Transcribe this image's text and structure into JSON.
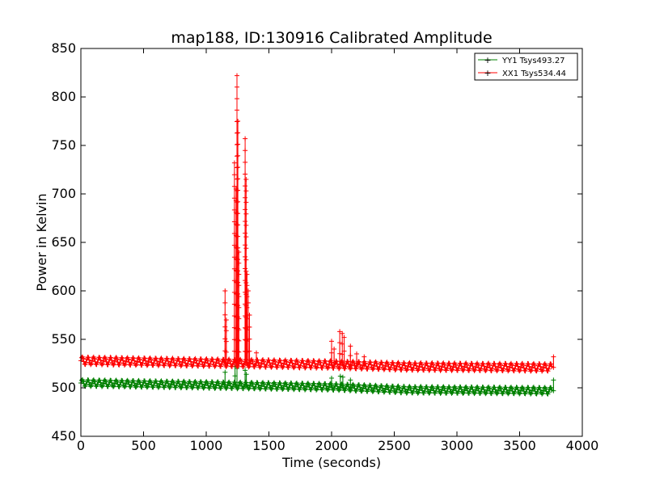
{
  "chart_data": {
    "type": "line",
    "title": "map188, ID:130916 Calibrated Amplitude",
    "xlabel": "Time (seconds)",
    "ylabel": "Power in Kelvin",
    "xlim": [
      0,
      4000
    ],
    "ylim": [
      450,
      850
    ],
    "xticks": [
      0,
      500,
      1000,
      1500,
      2000,
      2500,
      3000,
      3500,
      4000
    ],
    "yticks": [
      450,
      500,
      550,
      600,
      650,
      700,
      750,
      800,
      850
    ],
    "grid": false,
    "legend_position": "top-right",
    "series": [
      {
        "name": "YY1 Tsys493.27",
        "color": "#008000",
        "marker": "+",
        "baseline": [
          [
            0,
            505
          ],
          [
            1000,
            503
          ],
          [
            2000,
            501
          ],
          [
            2600,
            498
          ],
          [
            3760,
            497
          ]
        ],
        "ripple_amplitude": 3.5,
        "ripple_period_seconds": 45,
        "spikes": [
          {
            "x": 1150,
            "y": 516
          },
          {
            "x": 1230,
            "y": 522
          },
          {
            "x": 1245,
            "y": 520
          },
          {
            "x": 1310,
            "y": 518
          },
          {
            "x": 1320,
            "y": 514
          },
          {
            "x": 2000,
            "y": 510
          },
          {
            "x": 2070,
            "y": 512
          },
          {
            "x": 2090,
            "y": 511
          },
          {
            "x": 2150,
            "y": 508
          },
          {
            "x": 3770,
            "y": 508
          }
        ]
      },
      {
        "name": "XX1 Tsys534.44",
        "color": "#ff0000",
        "marker": "+",
        "baseline": [
          [
            0,
            528
          ],
          [
            1000,
            526
          ],
          [
            2000,
            524
          ],
          [
            2600,
            522
          ],
          [
            3760,
            521
          ]
        ],
        "ripple_amplitude": 4,
        "ripple_period_seconds": 45,
        "spikes": [
          {
            "x": 1150,
            "y": 600
          },
          {
            "x": 1160,
            "y": 570
          },
          {
            "x": 1225,
            "y": 732
          },
          {
            "x": 1238,
            "y": 705
          },
          {
            "x": 1245,
            "y": 822
          },
          {
            "x": 1252,
            "y": 775
          },
          {
            "x": 1260,
            "y": 640
          },
          {
            "x": 1310,
            "y": 757
          },
          {
            "x": 1318,
            "y": 715
          },
          {
            "x": 1325,
            "y": 617
          },
          {
            "x": 1335,
            "y": 600
          },
          {
            "x": 1345,
            "y": 575
          },
          {
            "x": 1400,
            "y": 536
          },
          {
            "x": 2000,
            "y": 548
          },
          {
            "x": 2020,
            "y": 540
          },
          {
            "x": 2065,
            "y": 558
          },
          {
            "x": 2085,
            "y": 556
          },
          {
            "x": 2100,
            "y": 552
          },
          {
            "x": 2150,
            "y": 543
          },
          {
            "x": 2200,
            "y": 535
          },
          {
            "x": 2260,
            "y": 532
          },
          {
            "x": 3770,
            "y": 532
          }
        ]
      }
    ]
  }
}
